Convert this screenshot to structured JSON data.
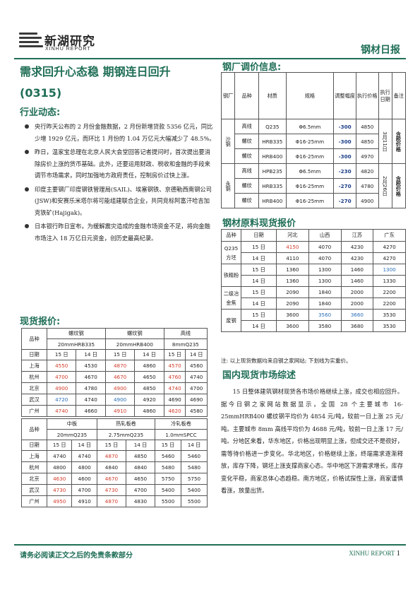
{
  "brand": {
    "cn": "新湖研究",
    "en": "XINHU REPORT"
  },
  "report_tag": "钢材日报",
  "title": {
    "line1": "需求回升心态稳 期钢连日回升",
    "line2": "(0315)"
  },
  "sections": {
    "industry": "行业动态:",
    "spot_price": "现货报价:",
    "mill_adjust": "钢厂调价信息:",
    "raw_material": "钢材原料现货报价",
    "summary": "国内现货市场综述"
  },
  "news": [
    "央行昨天公布的 2 月份金融数据，2 月份新增贷款 5356 亿元，同比少增 1929 亿元，而环比 1 月份的 1.04 万亿元大幅减少了 48.5%。",
    "昨日，温家宝总理在北京人民大会堂回答记者提问时，首次提出要消除房价上涨的货币基础。此外，还要运用财政、税收和金融的手段来调节市场需求，同时加强地方政府责任，控制房价过快上涨。",
    "印度主要钢厂印度钢铁管理局(SAIL)、埃塞钢铁、京德勒西南钢公司(JSW)和安赛乐米塔尔将可能组建联合企业，共同竞标阿富汗哈吉加克铁矿(Hajigak)。",
    "日本银行昨日宣布，为缓解震灾造成的金融市场资金不足，将向金融市场注入 18 万亿日元资金，创历史最高纪录。"
  ],
  "spot1": {
    "head": {
      "product": "品种",
      "rebar1": "螺纹钢",
      "rebar1_spec": "20mmHRB335",
      "rebar2": "螺纹钢",
      "rebar2_spec": "20mmHRB400",
      "wire": "高线",
      "wire_spec": "8mmQ235",
      "date": "日期",
      "d15": "15 日",
      "d14": "14 日"
    },
    "rows": [
      {
        "city": "上海",
        "v": [
          "4550",
          "4530",
          "4870",
          "4860",
          "4570",
          "4560"
        ],
        "c": [
          "red",
          "",
          "red",
          "",
          "red",
          ""
        ]
      },
      {
        "city": "杭州",
        "v": [
          "4700",
          "4670",
          "4670",
          "4650",
          "4760",
          "4740"
        ],
        "c": [
          "red",
          "",
          "red",
          "",
          "red",
          ""
        ]
      },
      {
        "city": "北京",
        "v": [
          "4900",
          "4780",
          "4900",
          "4850",
          "4740",
          "4700"
        ],
        "c": [
          "red",
          "",
          "red",
          "",
          "red",
          ""
        ]
      },
      {
        "city": "武汉",
        "v": [
          "4720",
          "4740",
          "4900",
          "4920",
          "4690",
          "4690"
        ],
        "c": [
          "blue",
          "",
          "blue",
          "",
          "",
          ""
        ]
      },
      {
        "city": "广州",
        "v": [
          "4740",
          "4660",
          "4910",
          "4860",
          "4620",
          "4580"
        ],
        "c": [
          "red",
          "",
          "red",
          "",
          "red",
          ""
        ]
      }
    ]
  },
  "spot2": {
    "head": {
      "product": "品种",
      "plate": "中板",
      "plate_spec": "20mmQ235",
      "hot": "热轧板卷",
      "hot_spec": "2.75mmQ235",
      "cold": "冷轧板卷",
      "cold_spec": "1.0mmSPCC",
      "date": "日期",
      "d15": "15 日",
      "d14": "14 日"
    },
    "rows": [
      {
        "city": "上海",
        "v": [
          "4740",
          "4740",
          "4870",
          "4850",
          "5460",
          "5460"
        ],
        "c": [
          "",
          "",
          "red",
          "",
          "",
          ""
        ]
      },
      {
        "city": "杭州",
        "v": [
          "4800",
          "4800",
          "4840",
          "4840",
          "5480",
          "5480"
        ],
        "c": [
          "",
          "",
          "",
          "",
          "",
          ""
        ]
      },
      {
        "city": "北京",
        "v": [
          "4630",
          "4600",
          "4670",
          "4650",
          "5750",
          "5750"
        ],
        "c": [
          "red",
          "",
          "red",
          "",
          "",
          ""
        ]
      },
      {
        "city": "武汉",
        "v": [
          "4730",
          "4700",
          "4730",
          "4700",
          "5400",
          "5400"
        ],
        "c": [
          "red",
          "",
          "red",
          "",
          "",
          ""
        ]
      },
      {
        "city": "广州",
        "v": [
          "4950",
          "4910",
          "4870",
          "4830",
          "5500",
          "5500"
        ],
        "c": [
          "red",
          "",
          "red",
          "",
          "",
          ""
        ]
      }
    ]
  },
  "mill": {
    "head": {
      "mill": "钢厂",
      "product": "品种",
      "material": "材质",
      "spec": "规格",
      "adjust": "调整幅度",
      "price": "执行价格",
      "date": "执行日期",
      "remark": "备注"
    },
    "groups": [
      {
        "mill": "沙钢",
        "date": "3月11日",
        "remark": "含税价格",
        "rows": [
          {
            "product": "高线",
            "material": "Q235",
            "spec": "Φ6.5mm",
            "adjust": "-300",
            "price": "4850"
          },
          {
            "product": "螺纹",
            "material": "HRB335",
            "spec": "Φ16-25mm",
            "adjust": "-300",
            "price": "4850"
          },
          {
            "product": "螺纹",
            "material": "HRB400",
            "spec": "Φ16-25mm",
            "adjust": "-300",
            "price": "4970"
          }
        ]
      },
      {
        "mill": "永钢",
        "date": "2月26日",
        "remark": "含税价格",
        "rows": [
          {
            "product": "高线",
            "material": "HPB235",
            "spec": "Φ6.5mm",
            "adjust": "-230",
            "price": "4820"
          },
          {
            "product": "螺纹",
            "material": "HRB335",
            "spec": "Φ16-25mm",
            "adjust": "-270",
            "price": "4780"
          },
          {
            "product": "螺纹",
            "material": "HRB400",
            "spec": "Φ16-25mm",
            "adjust": "-270",
            "price": "4900"
          }
        ]
      }
    ]
  },
  "raw": {
    "head": {
      "product": "品种",
      "date": "日期",
      "regions": [
        "河北",
        "山西",
        "江苏",
        "广东"
      ]
    },
    "groups": [
      {
        "product": "Q235方坯",
        "rows": [
          {
            "date": "15 日",
            "v": [
              "4150",
              "4070",
              "4230",
              "4270"
            ],
            "c": [
              "red",
              "",
              "",
              ""
            ]
          },
          {
            "date": "14 日",
            "v": [
              "4110",
              "4070",
              "4230",
              "4270"
            ],
            "c": [
              "",
              "",
              "",
              ""
            ]
          }
        ]
      },
      {
        "product": "铁精粉",
        "rows": [
          {
            "date": "15 日",
            "v": [
              "1360",
              "1300",
              "1460",
              "1300"
            ],
            "c": [
              "",
              "",
              "",
              "blue"
            ]
          },
          {
            "date": "14 日",
            "v": [
              "1360",
              "1300",
              "1460",
              "1330"
            ],
            "c": [
              "",
              "",
              "",
              ""
            ]
          }
        ]
      },
      {
        "product": "二级冶金焦",
        "rows": [
          {
            "date": "15 日",
            "v": [
              "2090",
              "1840",
              "2000",
              "2200"
            ],
            "c": [
              "",
              "",
              "",
              ""
            ]
          },
          {
            "date": "14 日",
            "v": [
              "2090",
              "1840",
              "2000",
              "2200"
            ],
            "c": [
              "",
              "",
              "",
              ""
            ]
          }
        ]
      },
      {
        "product": "废钢",
        "rows": [
          {
            "date": "15 日",
            "v": [
              "3600",
              "3560",
              "3660",
              "3530"
            ],
            "c": [
              "",
              "blue",
              "blue",
              ""
            ]
          },
          {
            "date": "14 日",
            "v": [
              "3600",
              "3580",
              "3680",
              "3530"
            ],
            "c": [
              "",
              "",
              "",
              ""
            ]
          }
        ]
      }
    ]
  },
  "note": "注: 以上现货数据均来自钢之家网站; 下划线为实重价。",
  "summary_text": "15 日整体建筑钢材现货各市场价格继续上涨，成交也相应回升。据今日钢之家网站数据显示，全国 28 个主要城市 16-25mmHRB400 螺纹钢平均价为 4854 元/吨，较前一日上涨 25 元/吨。主要城市 8mm 高线平均价为 4688 元/吨，较前一日上涨 17 元/吨。分地区来看，华东地区，价格出现明显上涨，但成交还不是很好，需等待价格进一步变化。华北地区，价格继续上涨，终端需求逐渐释放，库存下降，钢坯上涨支撑商家心态。华中地区下游需求增长，库存变化平稳，商家总体心态趋稳。南方地区，价格试探性上涨，商家谨慎看涨，放量出货。",
  "footer": {
    "disclaimer": "请务必阅读正文之后的免责条款部分",
    "brand": "XINHU REPORT",
    "page": "1"
  },
  "colors": {
    "brand_green": "#1f6e56",
    "up_red": "#d23b2a",
    "down_blue": "#2a6fb8",
    "neg_blue": "#1d3f8a"
  }
}
